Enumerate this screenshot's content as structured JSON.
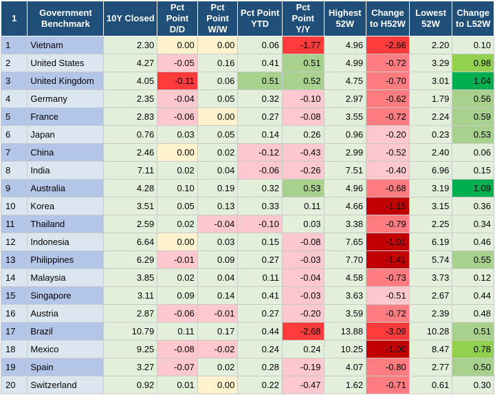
{
  "columns": [
    {
      "key": "idx",
      "label": "1"
    },
    {
      "key": "name",
      "label": "Government Benchmark"
    },
    {
      "key": "closed",
      "label": "10Y Closed"
    },
    {
      "key": "dd",
      "label": "Pct Point D/D"
    },
    {
      "key": "ww",
      "label": "Pct Point W/W"
    },
    {
      "key": "ytd",
      "label": "Pct Point YTD"
    },
    {
      "key": "yy",
      "label": "Pct Point Y/Y"
    },
    {
      "key": "h52",
      "label": "Highest 52W"
    },
    {
      "key": "ch52",
      "label": "Change to H52W"
    },
    {
      "key": "l52",
      "label": "Lowest 52W"
    },
    {
      "key": "cl52",
      "label": "Change to L52W"
    }
  ],
  "rows": [
    {
      "idx": "1",
      "name": "Vietnam",
      "closed": "2.30",
      "dd": "0.00",
      "ww": "0.00",
      "ytd": "0.06",
      "yy": "-1.77",
      "h52": "4.96",
      "ch52": "-2.66",
      "l52": "2.20",
      "cl52": "0.10"
    },
    {
      "idx": "2",
      "name": "United States",
      "closed": "4.27",
      "dd": "-0.05",
      "ww": "0.16",
      "ytd": "0.41",
      "yy": "0.51",
      "h52": "4.99",
      "ch52": "-0.72",
      "l52": "3.29",
      "cl52": "0.98"
    },
    {
      "idx": "3",
      "name": "United Kingdom",
      "closed": "4.05",
      "dd": "-0.11",
      "ww": "0.06",
      "ytd": "0.51",
      "yy": "0.52",
      "h52": "4.75",
      "ch52": "-0.70",
      "l52": "3.01",
      "cl52": "1.04"
    },
    {
      "idx": "4",
      "name": "Germany",
      "closed": "2.35",
      "dd": "-0.04",
      "ww": "0.05",
      "ytd": "0.32",
      "yy": "-0.10",
      "h52": "2.97",
      "ch52": "-0.62",
      "l52": "1.79",
      "cl52": "0.56"
    },
    {
      "idx": "5",
      "name": "France",
      "closed": "2.83",
      "dd": "-0.06",
      "ww": "0.00",
      "ytd": "0.27",
      "yy": "-0.08",
      "h52": "3.55",
      "ch52": "-0.72",
      "l52": "2.24",
      "cl52": "0.59"
    },
    {
      "idx": "6",
      "name": "Japan",
      "closed": "0.76",
      "dd": "0.03",
      "ww": "0.05",
      "ytd": "0.14",
      "yy": "0.26",
      "h52": "0.96",
      "ch52": "-0.20",
      "l52": "0.23",
      "cl52": "0.53"
    },
    {
      "idx": "7",
      "name": "China",
      "closed": "2.46",
      "dd": "0.00",
      "ww": "0.02",
      "ytd": "-0.12",
      "yy": "-0.43",
      "h52": "2.99",
      "ch52": "-0.52",
      "l52": "2.40",
      "cl52": "0.06"
    },
    {
      "idx": "8",
      "name": "India",
      "closed": "7.11",
      "dd": "0.02",
      "ww": "0.04",
      "ytd": "-0.06",
      "yy": "-0.26",
      "h52": "7.51",
      "ch52": "-0.40",
      "l52": "6.96",
      "cl52": "0.15"
    },
    {
      "idx": "9",
      "name": "Australia",
      "closed": "4.28",
      "dd": "0.10",
      "ww": "0.19",
      "ytd": "0.32",
      "yy": "0.53",
      "h52": "4.96",
      "ch52": "-0.68",
      "l52": "3.19",
      "cl52": "1.09"
    },
    {
      "idx": "10",
      "name": "Korea",
      "closed": "3.51",
      "dd": "0.05",
      "ww": "0.13",
      "ytd": "0.33",
      "yy": "0.11",
      "h52": "4.66",
      "ch52": "-1.15",
      "l52": "3.15",
      "cl52": "0.36"
    },
    {
      "idx": "11",
      "name": "Thailand",
      "closed": "2.59",
      "dd": "0.02",
      "ww": "-0.04",
      "ytd": "-0.10",
      "yy": "0.03",
      "h52": "3.38",
      "ch52": "-0.79",
      "l52": "2.25",
      "cl52": "0.34"
    },
    {
      "idx": "12",
      "name": "Indonesia",
      "closed": "6.64",
      "dd": "0.00",
      "ww": "0.03",
      "ytd": "0.15",
      "yy": "-0.08",
      "h52": "7.65",
      "ch52": "-1.01",
      "l52": "6.19",
      "cl52": "0.46"
    },
    {
      "idx": "13",
      "name": "Philippines",
      "closed": "6.29",
      "dd": "-0.01",
      "ww": "0.09",
      "ytd": "0.27",
      "yy": "-0.03",
      "h52": "7.70",
      "ch52": "-1.41",
      "l52": "5.74",
      "cl52": "0.55"
    },
    {
      "idx": "14",
      "name": "Malaysia",
      "closed": "3.85",
      "dd": "0.02",
      "ww": "0.04",
      "ytd": "0.11",
      "yy": "-0.04",
      "h52": "4.58",
      "ch52": "-0.73",
      "l52": "3.73",
      "cl52": "0.12"
    },
    {
      "idx": "15",
      "name": "Singapore",
      "closed": "3.11",
      "dd": "0.09",
      "ww": "0.14",
      "ytd": "0.41",
      "yy": "-0.03",
      "h52": "3.63",
      "ch52": "-0.51",
      "l52": "2.67",
      "cl52": "0.44"
    },
    {
      "idx": "16",
      "name": "Austria",
      "closed": "2.87",
      "dd": "-0.06",
      "ww": "-0.01",
      "ytd": "0.27",
      "yy": "-0.20",
      "h52": "3.59",
      "ch52": "-0.72",
      "l52": "2.39",
      "cl52": "0.48"
    },
    {
      "idx": "17",
      "name": "Brazil",
      "closed": "10.79",
      "dd": "0.11",
      "ww": "0.17",
      "ytd": "0.44",
      "yy": "-2.68",
      "h52": "13.88",
      "ch52": "-3.09",
      "l52": "10.28",
      "cl52": "0.51"
    },
    {
      "idx": "18",
      "name": "Mexico",
      "closed": "9.25",
      "dd": "-0.08",
      "ww": "-0.02",
      "ytd": "0.24",
      "yy": "0.24",
      "h52": "10.25",
      "ch52": "-1.00",
      "l52": "8.47",
      "cl52": "0.78"
    },
    {
      "idx": "19",
      "name": "Spain",
      "closed": "3.27",
      "dd": "-0.07",
      "ww": "0.02",
      "ytd": "0.28",
      "yy": "-0.19",
      "h52": "4.07",
      "ch52": "-0.80",
      "l52": "2.77",
      "cl52": "0.50"
    },
    {
      "idx": "20",
      "name": "Switzerland",
      "closed": "0.92",
      "dd": "0.01",
      "ww": "0.00",
      "ytd": "0.22",
      "yy": "-0.47",
      "h52": "1.62",
      "ch52": "-0.71",
      "l52": "0.61",
      "cl52": "0.30"
    }
  ],
  "colors": {
    "header_bg": "#1f4e79",
    "row_odd": "#b4c6e7",
    "row_even": "#dce6f1",
    "cell_plain": "#e2efda",
    "neutral_zero": "#fff2cc",
    "neg_light": "#ffc7ce",
    "neg_mid": "#ff7c80",
    "neg_strong": "#ff3b3b",
    "neg_dark": "#c00000",
    "pos_light": "#c6e0b4",
    "pos_mid": "#a9d18e",
    "pos_strong": "#92d050",
    "pos_dark": "#00b050"
  }
}
